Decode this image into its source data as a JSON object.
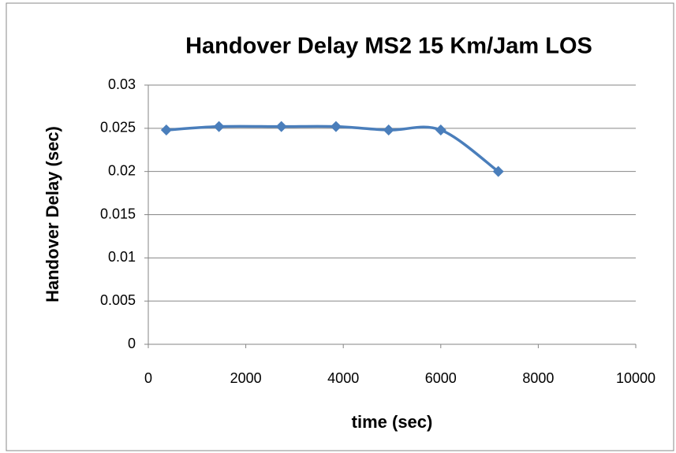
{
  "chart_data": {
    "type": "line",
    "title": "Handover Delay MS2 15 Km/Jam LOS",
    "x_label": "time (sec)",
    "y_label": "Handover Delay (sec)",
    "x": [
      370,
      1450,
      2730,
      3850,
      4930,
      6000,
      7180
    ],
    "series": [
      {
        "name": "Handover Delay",
        "color": "#4a7ebb",
        "values": [
          0.0248,
          0.0252,
          0.0252,
          0.0252,
          0.0248,
          0.0248,
          0.02
        ]
      }
    ],
    "xlim": [
      0,
      10000
    ],
    "xticks": [
      0,
      2000,
      4000,
      6000,
      8000,
      10000
    ],
    "ylim": [
      0,
      0.03
    ],
    "yticks": [
      0,
      0.005,
      0.01,
      0.015,
      0.02,
      0.025,
      0.03
    ],
    "grid": true
  }
}
